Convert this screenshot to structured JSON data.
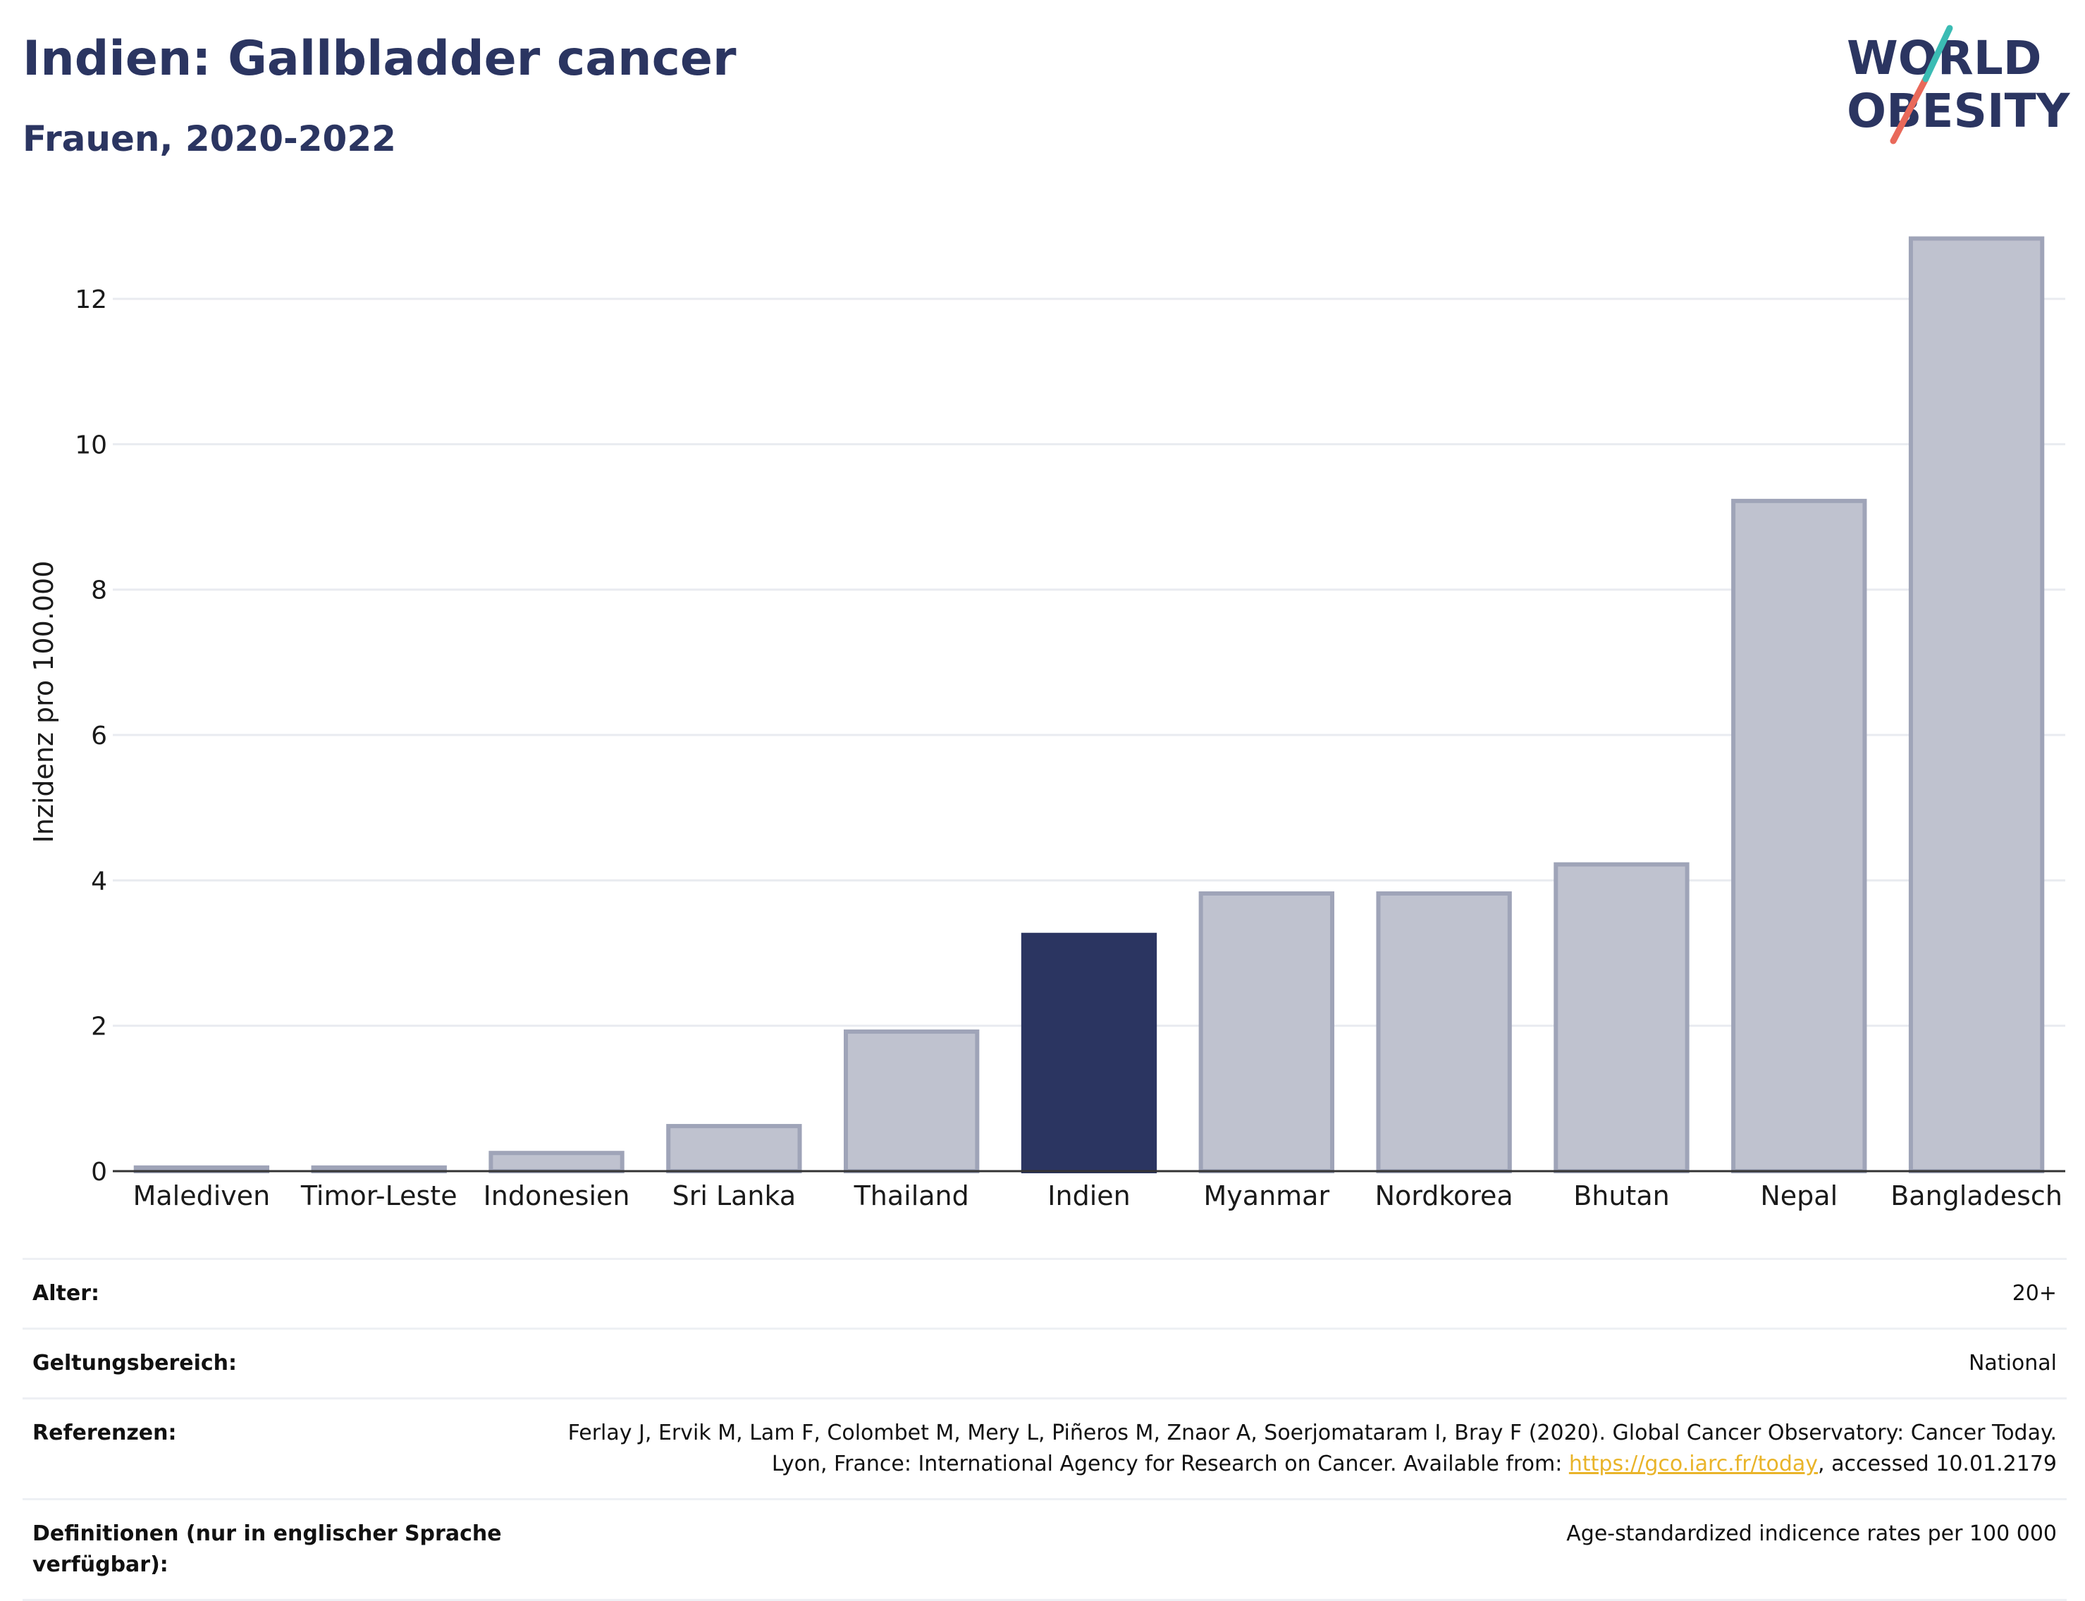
{
  "header": {
    "title": "Indien: Gallbladder cancer",
    "subtitle": "Frauen, 2020-2022",
    "logo": {
      "line1": "WORLD",
      "line2": "OBESITY"
    }
  },
  "colors": {
    "highlight": "#2b3561",
    "bar_fill": "#bfc2cf",
    "bar_stroke": "#9fa4b8",
    "grid": "#e9ebf0",
    "logo_text": "#2b3561",
    "logo_teal": "#3bbcb4",
    "logo_coral": "#e9695a",
    "link": "#e9b429"
  },
  "chart_data": {
    "type": "bar",
    "ylabel": "Inzidenz pro 100.000",
    "xlabel": "",
    "ylim": [
      0,
      13.3
    ],
    "yticks": [
      0,
      2,
      4,
      6,
      8,
      10,
      12
    ],
    "grid": true,
    "highlight_category": "Indien",
    "categories": [
      "Malediven",
      "Timor-Leste",
      "Indonesien",
      "Sri Lanka",
      "Thailand",
      "Indien",
      "Myanmar",
      "Nordkorea",
      "Bhutan",
      "Nepal",
      "Bangladesch"
    ],
    "values": [
      0.05,
      0.05,
      0.25,
      0.62,
      1.92,
      3.25,
      3.82,
      3.82,
      4.22,
      9.22,
      12.83
    ]
  },
  "metadata": {
    "rows": [
      {
        "label": "Alter:",
        "value": "20+"
      },
      {
        "label": "Geltungsbereich:",
        "value": "National"
      },
      {
        "label": "Referenzen:",
        "value_pre": "Ferlay J, Ervik M, Lam F, Colombet M, Mery L, Piñeros M, Znaor A, Soerjomataram I, Bray F (2020). Global Cancer Observatory: Cancer Today. Lyon, France: International Agency for Research on Cancer. Available from: ",
        "link": "https://gco.iarc.fr/today",
        "value_post": ", accessed 10.01.2179"
      },
      {
        "label": "Definitionen (nur in englischer Sprache verfügbar):",
        "value": "Age-standardized indicence rates per 100 000"
      }
    ]
  }
}
